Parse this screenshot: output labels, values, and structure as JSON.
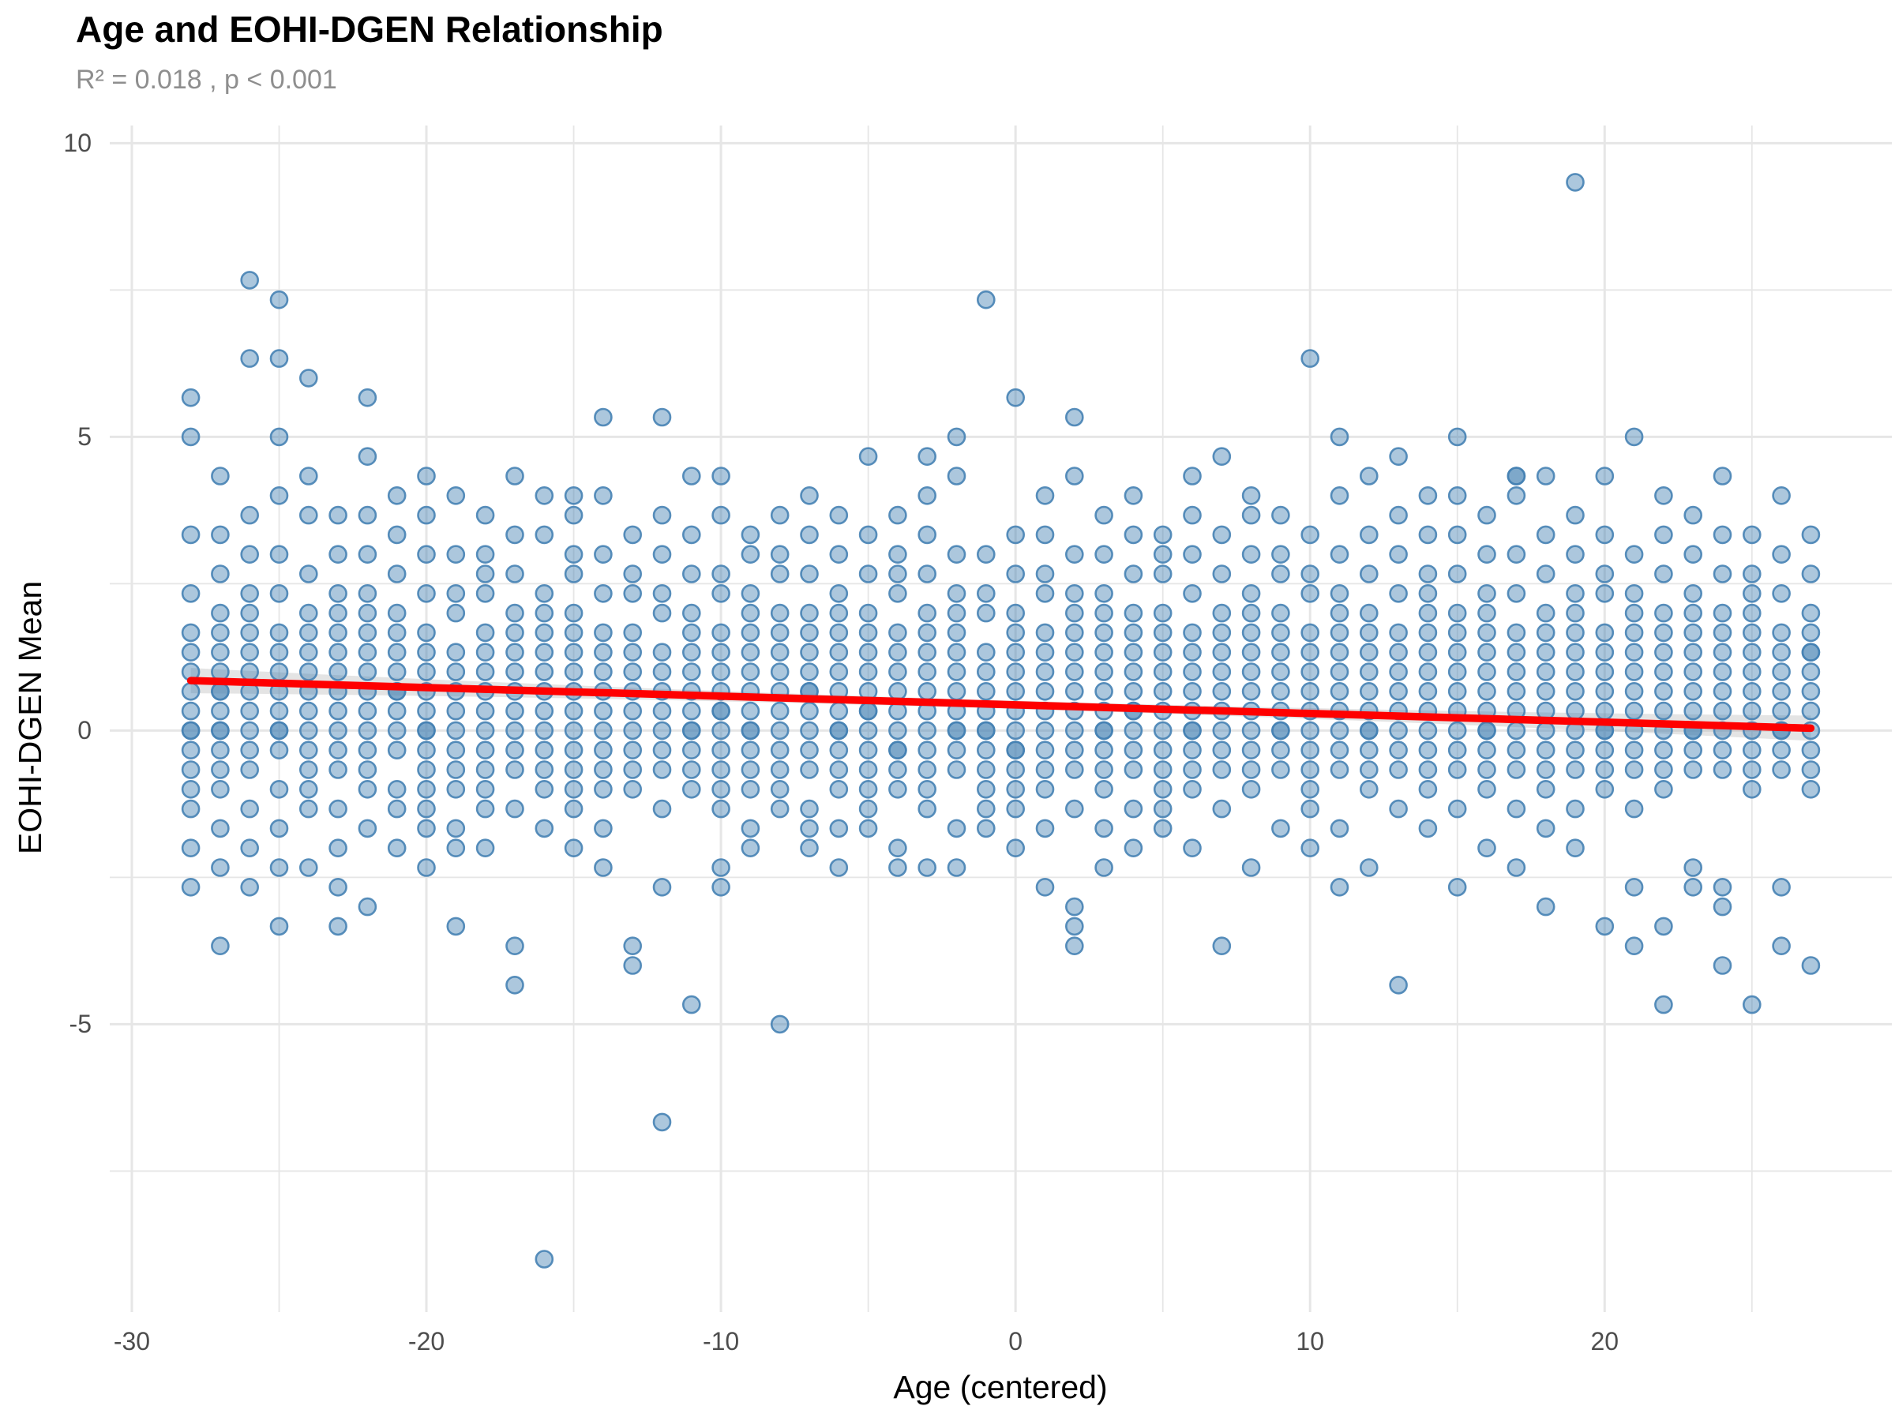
{
  "title": "Age and EOHI-DGEN Relationship",
  "subtitle": "R² = 0.018 , p < 0.001",
  "chart_data": {
    "type": "scatter",
    "title": "Age and EOHI-DGEN Relationship",
    "subtitle": "R² = 0.018 , p < 0.001",
    "xlabel": "Age (centered)",
    "ylabel": "EOHI-DGEN Mean",
    "xlim": [
      -30.75,
      29.75
    ],
    "ylim": [
      -9.9,
      10.3
    ],
    "x_ticks": [
      -30,
      -20,
      -10,
      0,
      10,
      20
    ],
    "y_ticks": [
      10,
      5,
      0,
      -5
    ],
    "x_minor": [
      -25,
      -15,
      -5,
      5,
      15,
      25
    ],
    "y_minor": [
      7.5,
      2.5,
      -2.5,
      -7.5
    ],
    "grid": true,
    "grid_color": "#E6E6E6",
    "background": "#FFFFFF",
    "point_color": "#4682B4",
    "point_fill_opacity": 0.45,
    "point_stroke_opacity": 0.9,
    "trend": {
      "x": [
        -28,
        27
      ],
      "y": [
        0.85,
        0.04
      ],
      "color": "#FF0000",
      "ci_color": "#AAAAAA",
      "ci_halfwidth_end": 0.215,
      "ci_halfwidth_mid": 0.07
    },
    "y_encoding_note": "each point y value equals k divided by 3 (scale means in thirds)",
    "columns": [
      {
        "x": -28,
        "k": [
          17,
          15,
          10,
          7,
          5,
          4,
          3,
          2,
          1,
          0,
          0,
          -1,
          -2,
          -3,
          -4,
          -6,
          -8
        ]
      },
      {
        "x": -27,
        "k": [
          13,
          10,
          8,
          6,
          5,
          4,
          3,
          2,
          2,
          1,
          0,
          0,
          -1,
          -2,
          -3,
          -5,
          -7,
          -11
        ]
      },
      {
        "x": -26,
        "k": [
          23,
          19,
          11,
          9,
          7,
          6,
          5,
          4,
          3,
          2,
          1,
          0,
          -1,
          -2,
          -4,
          -6,
          -8
        ]
      },
      {
        "x": -25,
        "k": [
          22,
          19,
          15,
          12,
          9,
          7,
          5,
          4,
          3,
          2,
          1,
          0,
          0,
          -1,
          -3,
          -5,
          -7,
          -10
        ]
      },
      {
        "x": -24,
        "k": [
          18,
          13,
          11,
          8,
          6,
          5,
          4,
          3,
          2,
          1,
          0,
          -1,
          -2,
          -3,
          -4,
          -7
        ]
      },
      {
        "x": -23,
        "k": [
          11,
          9,
          7,
          6,
          5,
          4,
          3,
          2,
          1,
          0,
          -1,
          -2,
          -4,
          -6,
          -8,
          -10
        ]
      },
      {
        "x": -22,
        "k": [
          17,
          14,
          11,
          9,
          7,
          6,
          5,
          4,
          3,
          2,
          1,
          0,
          -1,
          -2,
          -3,
          -5,
          -9
        ]
      },
      {
        "x": -21,
        "k": [
          12,
          10,
          8,
          6,
          5,
          4,
          3,
          2,
          2,
          1,
          0,
          -1,
          -3,
          -4,
          -6
        ]
      },
      {
        "x": -20,
        "k": [
          13,
          11,
          9,
          7,
          5,
          4,
          3,
          2,
          1,
          0,
          0,
          -1,
          -2,
          -3,
          -4,
          -5,
          -7
        ]
      },
      {
        "x": -19,
        "k": [
          12,
          9,
          7,
          6,
          4,
          3,
          2,
          1,
          0,
          -1,
          -2,
          -3,
          -5,
          -6,
          -10
        ]
      },
      {
        "x": -18,
        "k": [
          11,
          9,
          8,
          7,
          5,
          4,
          3,
          2,
          1,
          0,
          -1,
          -2,
          -3,
          -4,
          -6
        ]
      },
      {
        "x": -17,
        "k": [
          13,
          10,
          8,
          6,
          5,
          4,
          3,
          2,
          1,
          0,
          -1,
          -2,
          -4,
          -11,
          -13
        ]
      },
      {
        "x": -16,
        "k": [
          12,
          10,
          7,
          6,
          5,
          4,
          3,
          2,
          1,
          0,
          -1,
          -2,
          -3,
          -5,
          -27
        ]
      },
      {
        "x": -15,
        "k": [
          12,
          11,
          9,
          8,
          6,
          5,
          4,
          3,
          2,
          1,
          0,
          -1,
          -2,
          -3,
          -4,
          -6
        ]
      },
      {
        "x": -14,
        "k": [
          16,
          12,
          9,
          7,
          5,
          4,
          3,
          2,
          1,
          0,
          -1,
          -2,
          -3,
          -5,
          -7
        ]
      },
      {
        "x": -13,
        "k": [
          10,
          8,
          7,
          5,
          4,
          3,
          2,
          1,
          0,
          -1,
          -2,
          -3,
          -11,
          -12
        ]
      },
      {
        "x": -12,
        "k": [
          16,
          11,
          9,
          7,
          6,
          4,
          3,
          2,
          1,
          0,
          -1,
          -2,
          -4,
          -8,
          -20
        ]
      },
      {
        "x": -11,
        "k": [
          13,
          10,
          8,
          6,
          5,
          4,
          3,
          2,
          1,
          0,
          0,
          -1,
          -2,
          -3,
          -14
        ]
      },
      {
        "x": -10,
        "k": [
          13,
          11,
          8,
          7,
          5,
          4,
          3,
          2,
          1,
          1,
          0,
          -1,
          -2,
          -3,
          -4,
          -7,
          -8
        ]
      },
      {
        "x": -9,
        "k": [
          10,
          9,
          7,
          6,
          5,
          4,
          3,
          2,
          1,
          0,
          0,
          -1,
          -2,
          -3,
          -5,
          -6
        ]
      },
      {
        "x": -8,
        "k": [
          11,
          9,
          8,
          6,
          5,
          4,
          3,
          2,
          1,
          0,
          -1,
          -2,
          -3,
          -4,
          -15
        ]
      },
      {
        "x": -7,
        "k": [
          12,
          10,
          8,
          6,
          5,
          4,
          3,
          2,
          2,
          1,
          0,
          -1,
          -2,
          -4,
          -5,
          -6
        ]
      },
      {
        "x": -6,
        "k": [
          11,
          9,
          7,
          6,
          5,
          4,
          3,
          2,
          1,
          0,
          0,
          -1,
          -2,
          -3,
          -5,
          -7
        ]
      },
      {
        "x": -5,
        "k": [
          14,
          10,
          8,
          6,
          5,
          4,
          3,
          2,
          1,
          1,
          0,
          -1,
          -2,
          -3,
          -4,
          -5
        ]
      },
      {
        "x": -4,
        "k": [
          11,
          9,
          8,
          7,
          5,
          4,
          3,
          2,
          1,
          0,
          -1,
          -1,
          -2,
          -3,
          -6,
          -7
        ]
      },
      {
        "x": -3,
        "k": [
          14,
          12,
          10,
          8,
          6,
          5,
          4,
          3,
          2,
          1,
          0,
          -1,
          -2,
          -3,
          -4,
          -7
        ]
      },
      {
        "x": -2,
        "k": [
          15,
          13,
          9,
          7,
          6,
          5,
          4,
          3,
          2,
          1,
          0,
          0,
          -1,
          -2,
          -5,
          -7
        ]
      },
      {
        "x": -1,
        "k": [
          22,
          9,
          7,
          6,
          4,
          3,
          2,
          1,
          0,
          0,
          -1,
          -2,
          -3,
          -4,
          -5
        ]
      },
      {
        "x": 0,
        "k": [
          17,
          10,
          8,
          6,
          5,
          4,
          3,
          2,
          1,
          0,
          -1,
          -1,
          -2,
          -3,
          -4,
          -6
        ]
      },
      {
        "x": 1,
        "k": [
          12,
          10,
          8,
          7,
          5,
          4,
          3,
          2,
          1,
          0,
          -1,
          -2,
          -3,
          -5,
          -8
        ]
      },
      {
        "x": 2,
        "k": [
          16,
          13,
          9,
          7,
          6,
          5,
          4,
          3,
          2,
          1,
          0,
          -1,
          -2,
          -4,
          -9,
          -10,
          -11
        ]
      },
      {
        "x": 3,
        "k": [
          11,
          9,
          7,
          6,
          5,
          4,
          3,
          2,
          1,
          0,
          0,
          -1,
          -2,
          -3,
          -5,
          -7
        ]
      },
      {
        "x": 4,
        "k": [
          12,
          10,
          8,
          6,
          5,
          4,
          3,
          2,
          1,
          1,
          0,
          -1,
          -2,
          -4,
          -6
        ]
      },
      {
        "x": 5,
        "k": [
          10,
          9,
          8,
          6,
          5,
          4,
          3,
          2,
          1,
          0,
          -1,
          -2,
          -3,
          -4,
          -5
        ]
      },
      {
        "x": 6,
        "k": [
          13,
          11,
          9,
          7,
          5,
          4,
          3,
          2,
          1,
          0,
          0,
          -1,
          -2,
          -3,
          -6
        ]
      },
      {
        "x": 7,
        "k": [
          14,
          10,
          8,
          6,
          5,
          4,
          3,
          2,
          1,
          0,
          -1,
          -2,
          -4,
          -11
        ]
      },
      {
        "x": 8,
        "k": [
          12,
          11,
          9,
          7,
          6,
          5,
          4,
          3,
          2,
          1,
          0,
          -1,
          -2,
          -3,
          -7
        ]
      },
      {
        "x": 9,
        "k": [
          11,
          9,
          8,
          6,
          5,
          4,
          3,
          2,
          1,
          0,
          0,
          -1,
          -2,
          -5
        ]
      },
      {
        "x": 10,
        "k": [
          19,
          10,
          8,
          7,
          5,
          4,
          3,
          2,
          1,
          0,
          -1,
          -2,
          -3,
          -4,
          -6
        ]
      },
      {
        "x": 11,
        "k": [
          15,
          12,
          9,
          7,
          6,
          5,
          4,
          3,
          2,
          1,
          0,
          -1,
          -2,
          -5,
          -8
        ]
      },
      {
        "x": 12,
        "k": [
          13,
          10,
          8,
          6,
          5,
          4,
          3,
          2,
          1,
          0,
          0,
          -1,
          -2,
          -3,
          -7
        ]
      },
      {
        "x": 13,
        "k": [
          14,
          11,
          9,
          7,
          5,
          4,
          3,
          2,
          1,
          0,
          -1,
          -2,
          -4,
          -13
        ]
      },
      {
        "x": 14,
        "k": [
          12,
          10,
          8,
          7,
          6,
          5,
          4,
          3,
          2,
          1,
          0,
          -1,
          -2,
          -3,
          -5
        ]
      },
      {
        "x": 15,
        "k": [
          15,
          12,
          10,
          8,
          6,
          5,
          4,
          3,
          2,
          1,
          0,
          -1,
          -2,
          -4,
          -8
        ]
      },
      {
        "x": 16,
        "k": [
          11,
          9,
          7,
          6,
          5,
          4,
          3,
          2,
          1,
          0,
          0,
          -1,
          -2,
          -3,
          -6
        ]
      },
      {
        "x": 17,
        "k": [
          13,
          13,
          12,
          9,
          7,
          5,
          4,
          3,
          2,
          1,
          0,
          -1,
          -2,
          -4,
          -7
        ]
      },
      {
        "x": 18,
        "k": [
          13,
          10,
          8,
          6,
          5,
          4,
          3,
          2,
          1,
          0,
          -1,
          -2,
          -3,
          -5,
          -9
        ]
      },
      {
        "x": 19,
        "k": [
          28,
          11,
          9,
          7,
          6,
          5,
          4,
          3,
          2,
          1,
          0,
          -1,
          -2,
          -4,
          -6
        ]
      },
      {
        "x": 20,
        "k": [
          13,
          10,
          8,
          7,
          5,
          4,
          3,
          2,
          1,
          0,
          0,
          -1,
          -2,
          -3,
          -10
        ]
      },
      {
        "x": 21,
        "k": [
          15,
          9,
          7,
          6,
          5,
          4,
          3,
          2,
          1,
          0,
          -1,
          -2,
          -4,
          -8,
          -11
        ]
      },
      {
        "x": 22,
        "k": [
          12,
          10,
          8,
          6,
          5,
          4,
          3,
          2,
          1,
          0,
          -1,
          -2,
          -3,
          -10,
          -14
        ]
      },
      {
        "x": 23,
        "k": [
          11,
          9,
          7,
          6,
          5,
          4,
          3,
          2,
          1,
          0,
          0,
          -1,
          -2,
          -7,
          -8
        ]
      },
      {
        "x": 24,
        "k": [
          13,
          10,
          8,
          6,
          5,
          4,
          3,
          2,
          1,
          0,
          -1,
          -2,
          -8,
          -9,
          -12
        ]
      },
      {
        "x": 25,
        "k": [
          10,
          8,
          7,
          6,
          5,
          4,
          3,
          2,
          1,
          0,
          -1,
          -2,
          -3,
          -14
        ]
      },
      {
        "x": 26,
        "k": [
          12,
          9,
          7,
          5,
          4,
          3,
          2,
          1,
          0,
          0,
          -1,
          -2,
          -8,
          -11
        ]
      },
      {
        "x": 27,
        "k": [
          10,
          8,
          6,
          5,
          4,
          4,
          3,
          2,
          1,
          0,
          -1,
          -2,
          -3,
          -12
        ]
      }
    ]
  }
}
